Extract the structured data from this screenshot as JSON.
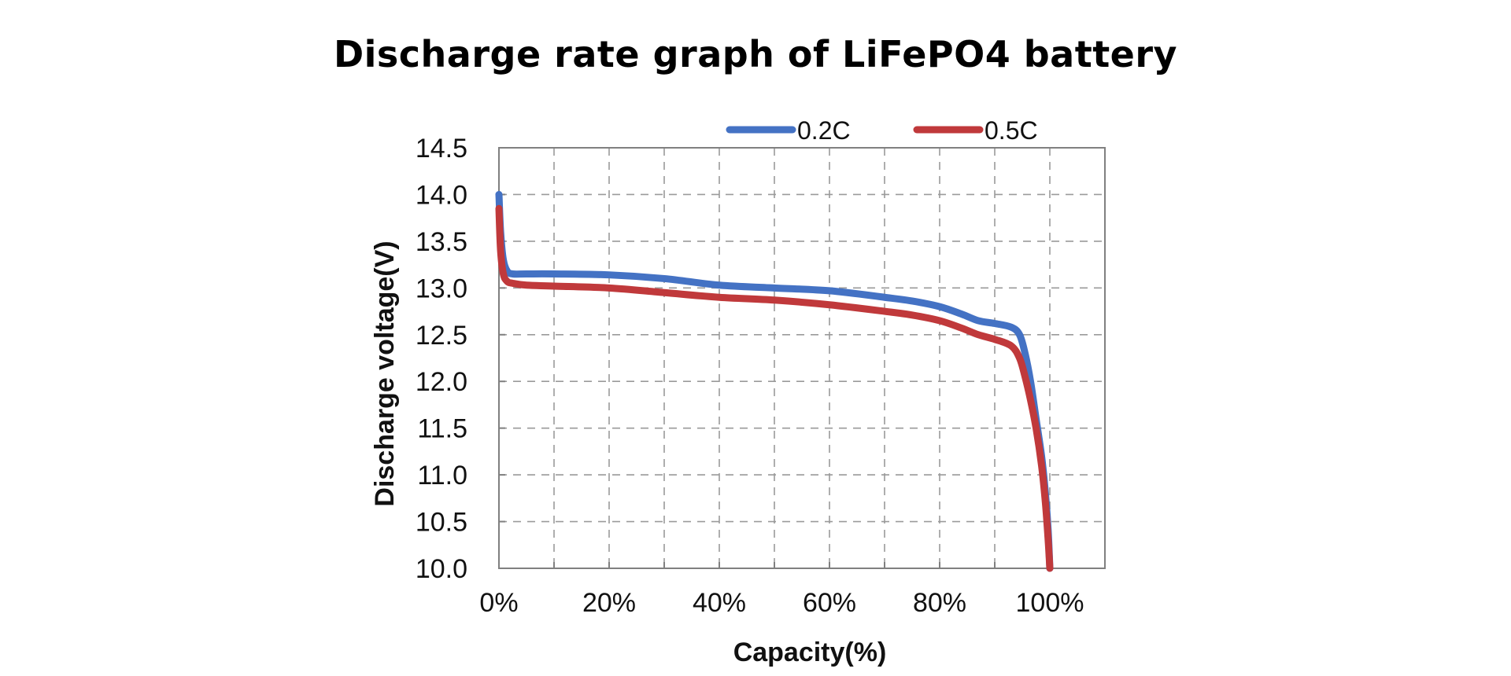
{
  "chart_data": {
    "type": "line",
    "title": "Discharge rate graph of LiFePO4 battery",
    "xlabel": "Capacity(%)",
    "ylabel": "Discharge voltage(V)",
    "xlim": [
      0,
      110
    ],
    "ylim": [
      10.0,
      14.5
    ],
    "x_ticks": [
      0,
      20,
      40,
      60,
      80,
      100
    ],
    "x_tick_labels": [
      "0%",
      "20%",
      "40%",
      "60%",
      "80%",
      "100%"
    ],
    "x_minor_grid": [
      10,
      30,
      50,
      70,
      90
    ],
    "y_ticks": [
      10.0,
      10.5,
      11.0,
      11.5,
      12.0,
      12.5,
      13.0,
      13.5,
      14.0,
      14.5
    ],
    "y_tick_labels": [
      "10.0",
      "10.5",
      "11.0",
      "11.5",
      "12.0",
      "12.5",
      "13.0",
      "13.5",
      "14.0",
      "14.5"
    ],
    "grid": true,
    "grid_style": "dashed",
    "legend_position": "top-right",
    "series": [
      {
        "name": "0.2C",
        "color": "#4472c4",
        "x": [
          0,
          0.3,
          0.8,
          1.5,
          2.5,
          5,
          10,
          20,
          30,
          40,
          50,
          60,
          70,
          75,
          80,
          84,
          87,
          90,
          93,
          94.5,
          95.5,
          96.5,
          97.5,
          98.5,
          99.2,
          99.7,
          100
        ],
        "y": [
          14.0,
          13.6,
          13.3,
          13.18,
          13.15,
          13.15,
          13.15,
          13.14,
          13.1,
          13.03,
          13.0,
          12.97,
          12.9,
          12.86,
          12.8,
          12.72,
          12.65,
          12.62,
          12.58,
          12.5,
          12.3,
          12.0,
          11.6,
          11.2,
          10.8,
          10.4,
          10.0
        ]
      },
      {
        "name": "0.5C",
        "color": "#c0393b",
        "x": [
          0,
          0.3,
          0.8,
          1.5,
          2.5,
          5,
          10,
          20,
          30,
          40,
          50,
          60,
          70,
          75,
          80,
          84,
          87,
          90,
          93,
          94.5,
          95.5,
          96.5,
          97.5,
          98.5,
          99.2,
          99.7,
          100
        ],
        "y": [
          13.85,
          13.4,
          13.15,
          13.07,
          13.05,
          13.03,
          13.02,
          13.0,
          12.95,
          12.9,
          12.87,
          12.82,
          12.75,
          12.71,
          12.65,
          12.57,
          12.5,
          12.45,
          12.38,
          12.25,
          12.05,
          11.8,
          11.5,
          11.1,
          10.7,
          10.3,
          10.0
        ]
      }
    ]
  }
}
